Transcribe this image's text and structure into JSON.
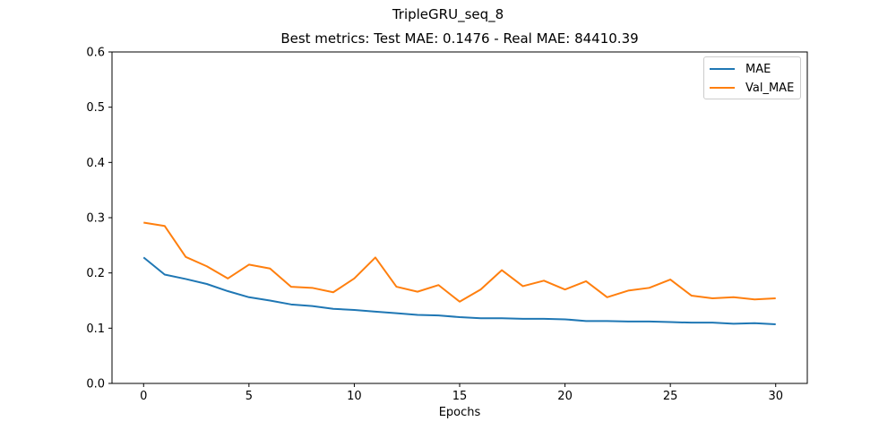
{
  "chart_data": {
    "type": "line",
    "suptitle": "TripleGRU_seq_8",
    "title": "Best metrics: Test MAE: 0.1476 - Real MAE: 84410.39",
    "xlabel": "Epochs",
    "ylabel": "",
    "xlim": [
      -1.5,
      31.5
    ],
    "ylim": [
      0,
      0.6
    ],
    "xticks": [
      0,
      5,
      10,
      15,
      20,
      25,
      30
    ],
    "yticks": [
      0.0,
      0.1,
      0.2,
      0.3,
      0.4,
      0.5,
      0.6
    ],
    "xtick_labels": [
      "0",
      "5",
      "10",
      "15",
      "20",
      "25",
      "30"
    ],
    "ytick_labels": [
      "0.0",
      "0.1",
      "0.2",
      "0.3",
      "0.4",
      "0.5",
      "0.6"
    ],
    "legend_position": "top-right",
    "grid": false,
    "x": [
      0,
      1,
      2,
      3,
      4,
      5,
      6,
      7,
      8,
      9,
      10,
      11,
      12,
      13,
      14,
      15,
      16,
      17,
      18,
      19,
      20,
      21,
      22,
      23,
      24,
      25,
      26,
      27,
      28,
      29,
      30
    ],
    "series": [
      {
        "name": "MAE",
        "color": "#1f77b4",
        "values": [
          0.228,
          0.197,
          0.189,
          0.18,
          0.167,
          0.156,
          0.15,
          0.143,
          0.14,
          0.135,
          0.133,
          0.13,
          0.127,
          0.124,
          0.123,
          0.12,
          0.118,
          0.118,
          0.117,
          0.117,
          0.116,
          0.113,
          0.113,
          0.112,
          0.112,
          0.111,
          0.11,
          0.11,
          0.108,
          0.109,
          0.107
        ]
      },
      {
        "name": "Val_MAE",
        "color": "#ff7f0e",
        "values": [
          0.291,
          0.285,
          0.229,
          0.212,
          0.19,
          0.215,
          0.208,
          0.175,
          0.173,
          0.165,
          0.19,
          0.228,
          0.175,
          0.166,
          0.178,
          0.148,
          0.17,
          0.205,
          0.176,
          0.186,
          0.17,
          0.185,
          0.156,
          0.168,
          0.173,
          0.188,
          0.159,
          0.154,
          0.156,
          0.152,
          0.154
        ]
      }
    ]
  }
}
